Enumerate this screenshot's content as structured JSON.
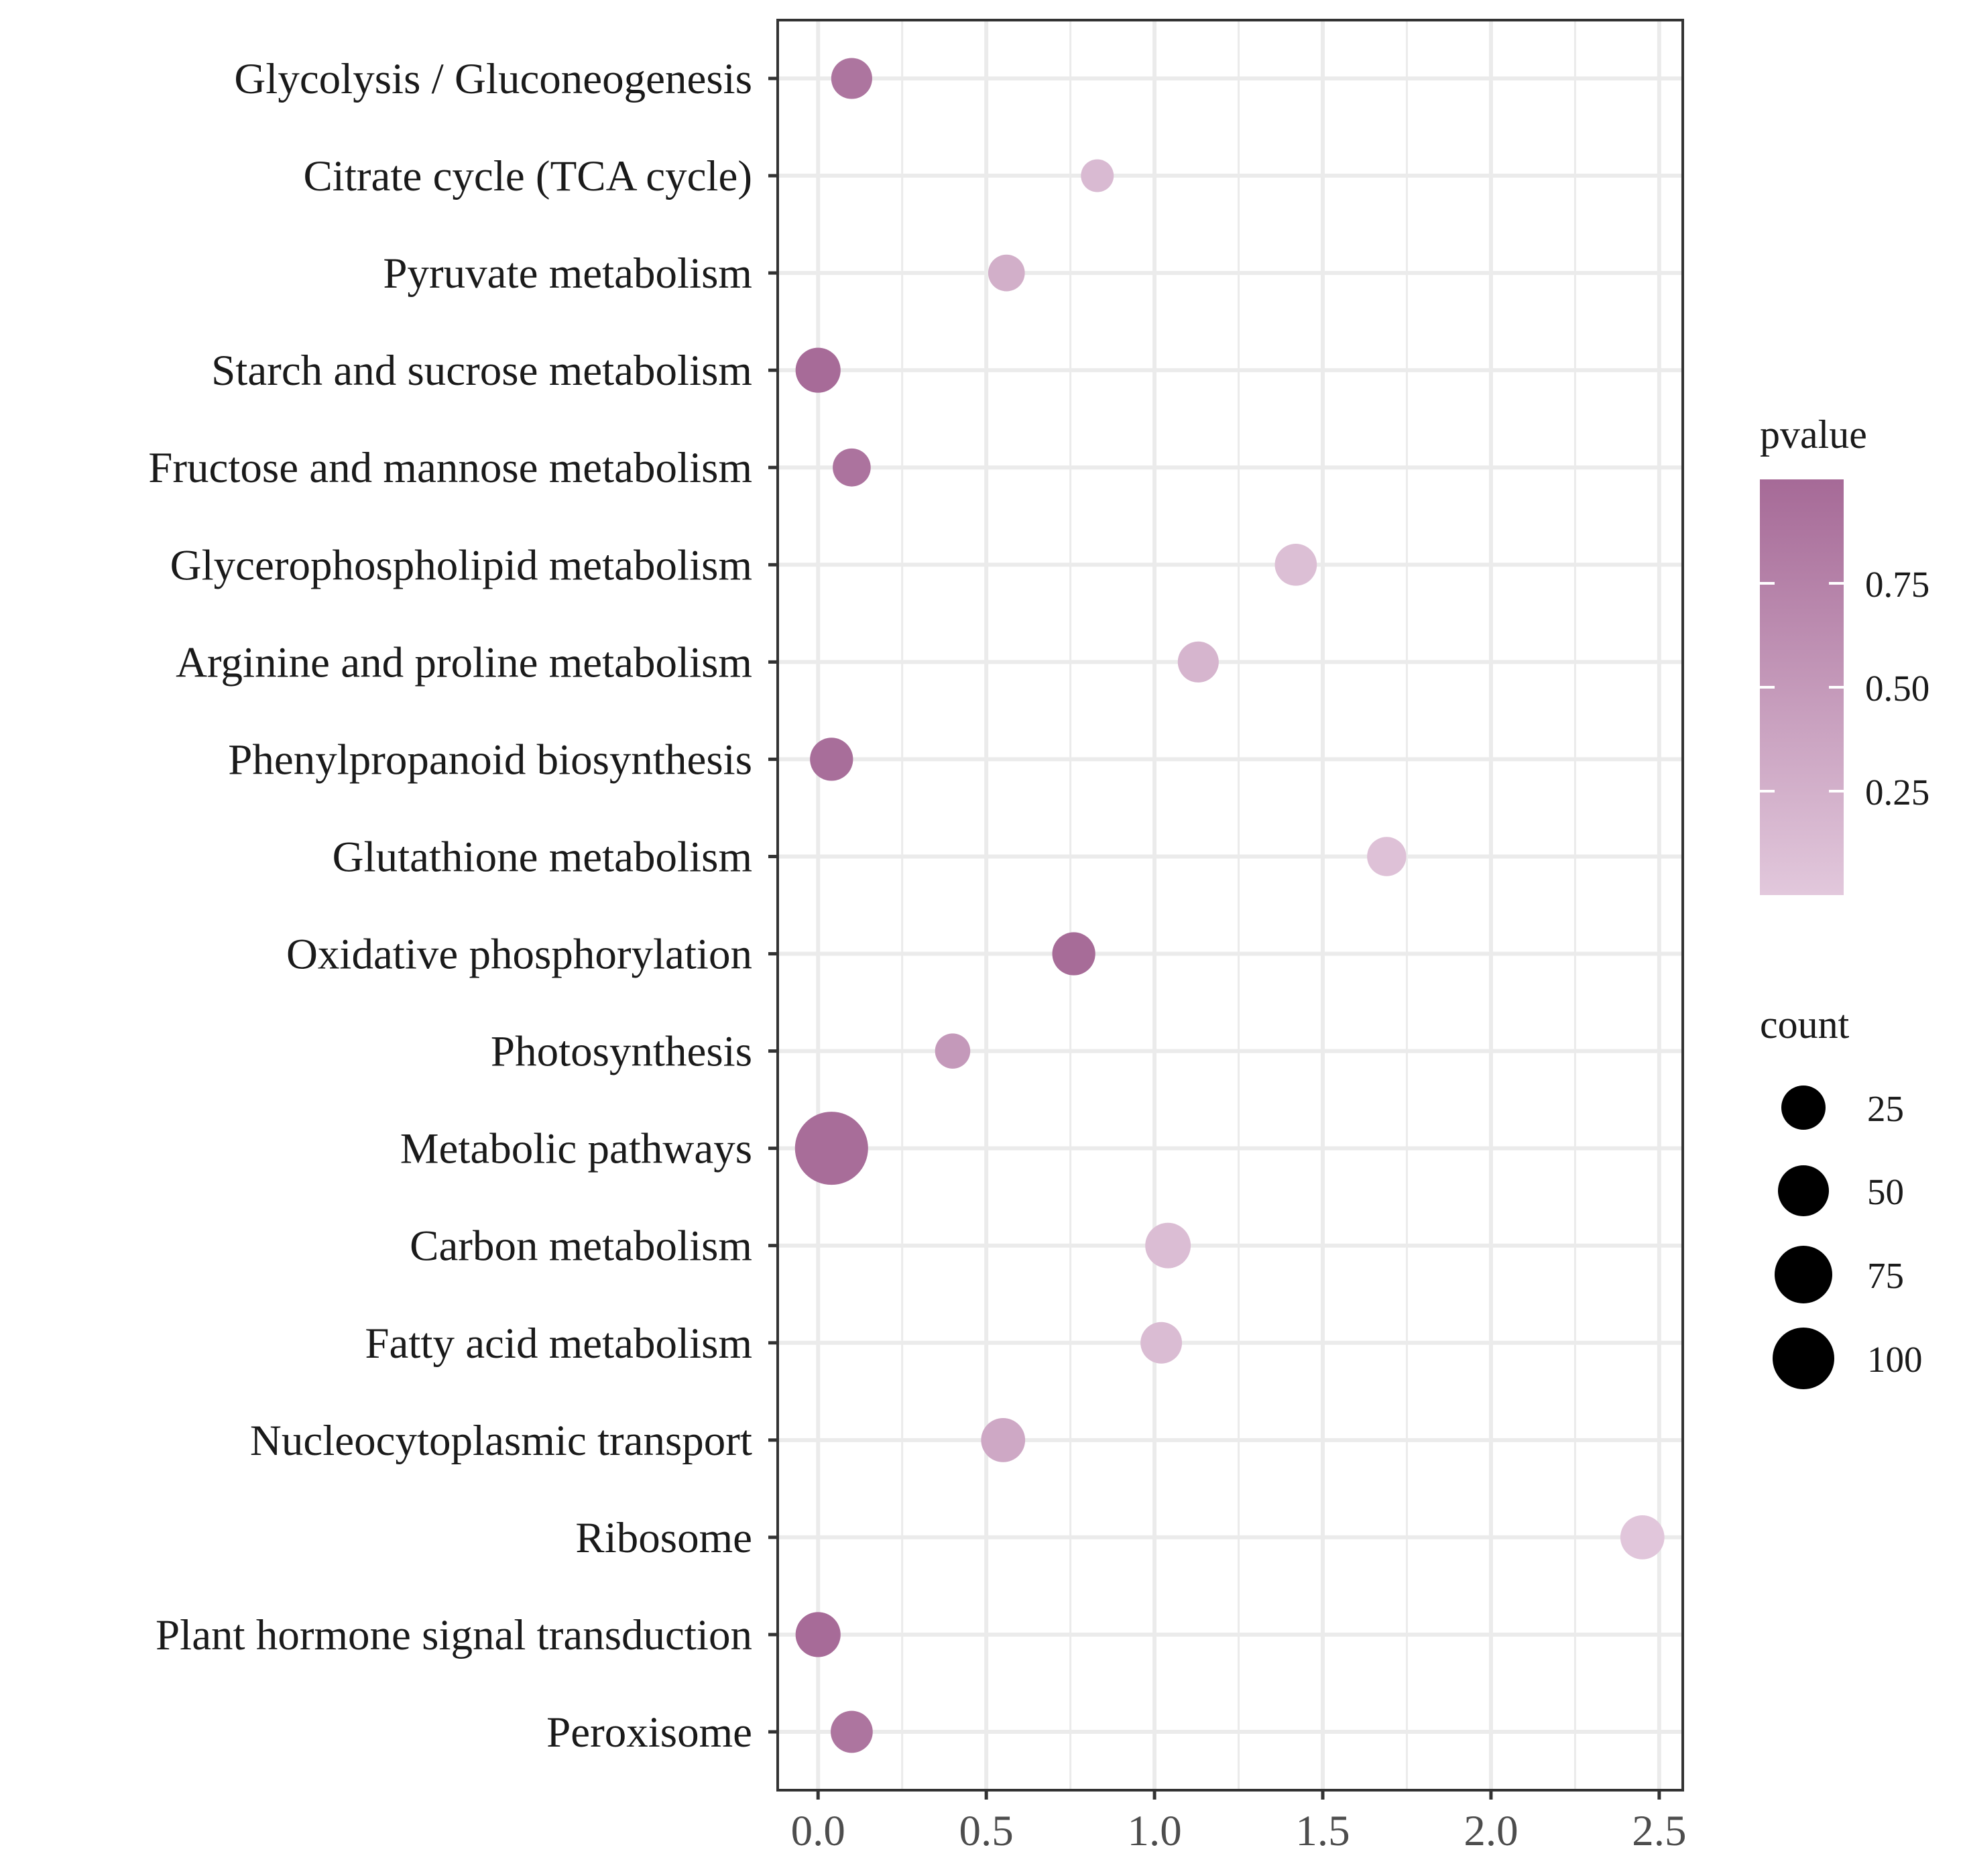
{
  "chart_data": {
    "type": "scatter",
    "title": "",
    "xlabel": "",
    "ylabel": "",
    "xlim": [
      -0.12,
      2.57
    ],
    "x_ticks": [
      "0.0",
      "0.5",
      "1.0",
      "1.5",
      "2.0",
      "2.5"
    ],
    "x_tick_values": [
      0.0,
      0.5,
      1.0,
      1.5,
      2.0,
      2.5
    ],
    "grid": true,
    "categories": [
      "Glycolysis / Gluconeogenesis",
      "Citrate cycle (TCA cycle)",
      "Pyruvate metabolism",
      "Starch and sucrose metabolism",
      "Fructose and mannose metabolism",
      "Glycerophospholipid metabolism",
      "Arginine and proline metabolism",
      "Phenylpropanoid biosynthesis",
      "Glutathione metabolism",
      "Oxidative phosphorylation",
      "Photosynthesis",
      "Metabolic pathways",
      "Carbon metabolism",
      "Fatty acid metabolism",
      "Nucleocytoplasmic transport",
      "Ribosome",
      "Plant hormone signal transduction",
      "Peroxisome"
    ],
    "x": [
      0.1,
      0.83,
      0.56,
      0.0,
      0.1,
      1.42,
      1.13,
      0.04,
      1.69,
      0.76,
      0.4,
      0.04,
      1.04,
      1.02,
      0.55,
      2.45,
      0.0,
      0.1
    ],
    "pvalue": [
      0.88,
      0.15,
      0.27,
      0.99,
      0.9,
      0.1,
      0.2,
      0.96,
      0.07,
      0.98,
      0.5,
      0.97,
      0.12,
      0.13,
      0.34,
      0.02,
      0.99,
      0.88
    ],
    "count": [
      20,
      8,
      13,
      28,
      15,
      22,
      20,
      24,
      17,
      24,
      11,
      120,
      29,
      21,
      26,
      26,
      28,
      22
    ],
    "color_scale": {
      "title": "pvalue",
      "low_color": "#e2c8dc",
      "high_color": "#a66a97",
      "ticks": [
        "0.75",
        "0.50",
        "0.25"
      ],
      "tick_values": [
        0.75,
        0.5,
        0.25
      ],
      "range": [
        0.0,
        1.0
      ]
    },
    "size_legend": {
      "title": "count",
      "labels": [
        "25",
        "50",
        "75",
        "100"
      ],
      "values": [
        25,
        50,
        75,
        100
      ]
    },
    "legend_position": "right"
  }
}
